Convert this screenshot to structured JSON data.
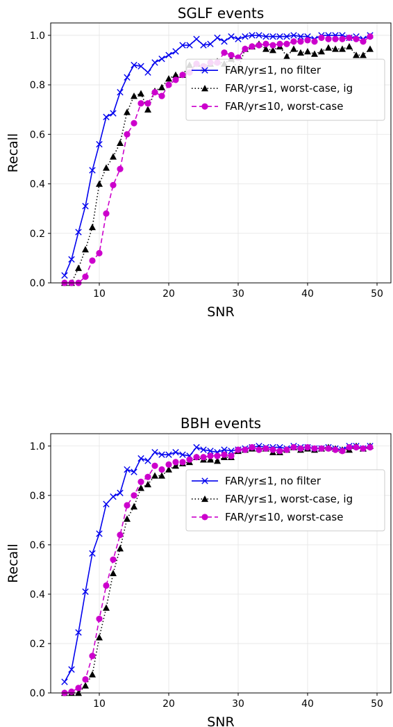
{
  "chart_data": [
    {
      "type": "line",
      "title": "SGLF events",
      "xlabel": "SNR",
      "ylabel": "Recall",
      "xlim": [
        3,
        52
      ],
      "ylim": [
        0,
        1.05
      ],
      "xticks": [
        10,
        20,
        30,
        40,
        50
      ],
      "yticks": [
        0.0,
        0.2,
        0.4,
        0.6,
        0.8,
        1.0
      ],
      "grid": true,
      "legend_position": "center-right",
      "x": [
        5,
        6,
        7,
        8,
        9,
        10,
        11,
        12,
        13,
        14,
        15,
        16,
        17,
        18,
        19,
        20,
        21,
        22,
        23,
        24,
        25,
        26,
        27,
        28,
        29,
        30,
        31,
        32,
        33,
        34,
        35,
        36,
        37,
        38,
        39,
        40,
        41,
        42,
        43,
        44,
        45,
        46,
        47,
        48,
        49
      ],
      "series": [
        {
          "name": "FAR/yr≤1, no filter",
          "color": "#0000ee",
          "marker": "x",
          "linestyle": "solid",
          "values": [
            0.03,
            0.095,
            0.205,
            0.31,
            0.455,
            0.56,
            0.67,
            0.685,
            0.77,
            0.83,
            0.88,
            0.875,
            0.85,
            0.89,
            0.905,
            0.92,
            0.935,
            0.96,
            0.96,
            0.985,
            0.96,
            0.965,
            0.99,
            0.975,
            0.995,
            0.985,
            0.995,
            1.0,
            1.0,
            0.995,
            0.995,
            0.995,
            0.995,
            1.0,
            0.995,
            0.995,
            0.985,
            1.0,
            1.0,
            1.0,
            1.0,
            0.99,
            0.995,
            0.985,
            1.0
          ]
        },
        {
          "name": "FAR/yr≤1, worst-case, ig",
          "color": "#000000",
          "marker": "triangle",
          "linestyle": "dotted",
          "values": [
            0.0,
            0.0,
            0.06,
            0.135,
            0.225,
            0.4,
            0.465,
            0.51,
            0.565,
            0.69,
            0.755,
            0.765,
            0.7,
            0.775,
            0.79,
            0.825,
            0.84,
            0.84,
            0.88,
            0.885,
            0.865,
            0.885,
            0.895,
            0.885,
            0.905,
            0.865,
            0.945,
            0.955,
            0.965,
            0.945,
            0.94,
            0.955,
            0.915,
            0.945,
            0.93,
            0.935,
            0.925,
            0.935,
            0.95,
            0.945,
            0.945,
            0.955,
            0.92,
            0.92,
            0.945
          ]
        },
        {
          "name": "FAR/yr≤10, worst-case",
          "color": "#cc00cc",
          "marker": "circle",
          "linestyle": "dashed",
          "values": [
            0.0,
            0.0,
            0.0,
            0.025,
            0.09,
            0.12,
            0.28,
            0.395,
            0.46,
            0.6,
            0.645,
            0.725,
            0.725,
            0.77,
            0.755,
            0.8,
            0.82,
            0.84,
            0.85,
            0.885,
            0.875,
            0.89,
            0.89,
            0.93,
            0.92,
            0.91,
            0.945,
            0.955,
            0.96,
            0.965,
            0.96,
            0.965,
            0.965,
            0.975,
            0.975,
            0.98,
            0.975,
            0.99,
            0.985,
            0.985,
            0.985,
            0.99,
            0.985,
            0.975,
            0.995
          ]
        }
      ]
    },
    {
      "type": "line",
      "title": "BBH events",
      "xlabel": "SNR",
      "ylabel": "Recall",
      "xlim": [
        3,
        52
      ],
      "ylim": [
        0,
        1.05
      ],
      "xticks": [
        10,
        20,
        30,
        40,
        50
      ],
      "yticks": [
        0.0,
        0.2,
        0.4,
        0.6,
        0.8,
        1.0
      ],
      "grid": true,
      "legend_position": "center-right",
      "x": [
        5,
        6,
        7,
        8,
        9,
        10,
        11,
        12,
        13,
        14,
        15,
        16,
        17,
        18,
        19,
        20,
        21,
        22,
        23,
        24,
        25,
        26,
        27,
        28,
        29,
        30,
        31,
        32,
        33,
        34,
        35,
        36,
        37,
        38,
        39,
        40,
        41,
        42,
        43,
        44,
        45,
        46,
        47,
        48,
        49
      ],
      "series": [
        {
          "name": "FAR/yr≤1, no filter",
          "color": "#0000ee",
          "marker": "x",
          "linestyle": "solid",
          "values": [
            0.045,
            0.095,
            0.245,
            0.41,
            0.565,
            0.645,
            0.765,
            0.795,
            0.81,
            0.905,
            0.895,
            0.95,
            0.94,
            0.975,
            0.965,
            0.965,
            0.975,
            0.965,
            0.96,
            0.995,
            0.985,
            0.98,
            0.975,
            0.985,
            0.98,
            0.985,
            0.99,
            0.995,
            1.0,
            0.995,
            0.995,
            0.995,
            0.99,
            1.0,
            0.995,
            0.995,
            0.99,
            0.99,
            0.995,
            0.99,
            0.985,
            1.0,
            1.0,
            0.99,
            1.0
          ]
        },
        {
          "name": "FAR/yr≤1, worst-case, ig",
          "color": "#000000",
          "marker": "triangle",
          "linestyle": "dotted",
          "values": [
            0.0,
            0.0,
            0.0,
            0.03,
            0.075,
            0.225,
            0.345,
            0.485,
            0.585,
            0.705,
            0.755,
            0.83,
            0.845,
            0.88,
            0.88,
            0.905,
            0.92,
            0.93,
            0.935,
            0.955,
            0.945,
            0.945,
            0.94,
            0.955,
            0.955,
            0.98,
            0.985,
            0.99,
            0.99,
            0.99,
            0.975,
            0.975,
            0.985,
            0.995,
            0.985,
            0.99,
            0.985,
            0.99,
            0.995,
            0.99,
            0.985,
            0.985,
            1.0,
            0.99,
            1.0
          ]
        },
        {
          "name": "FAR/yr≤10, worst-case",
          "color": "#cc00cc",
          "marker": "circle",
          "linestyle": "dashed",
          "values": [
            0.0,
            0.005,
            0.02,
            0.055,
            0.15,
            0.3,
            0.435,
            0.54,
            0.64,
            0.76,
            0.8,
            0.855,
            0.875,
            0.92,
            0.905,
            0.925,
            0.935,
            0.935,
            0.945,
            0.955,
            0.955,
            0.96,
            0.96,
            0.965,
            0.96,
            0.985,
            0.985,
            0.995,
            0.985,
            0.99,
            0.985,
            0.98,
            0.985,
            0.995,
            0.99,
            0.995,
            0.99,
            0.99,
            0.99,
            0.985,
            0.98,
            0.995,
            0.995,
            0.99,
            0.995
          ]
        }
      ]
    }
  ]
}
